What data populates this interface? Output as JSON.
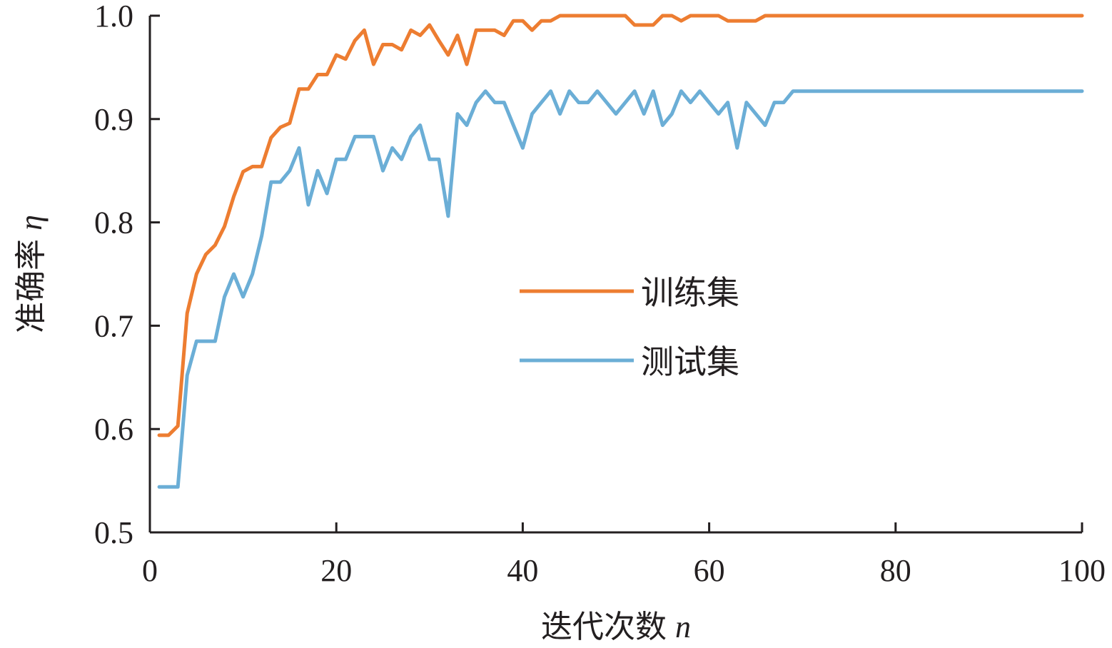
{
  "chart_data": {
    "type": "line",
    "xlabel": {
      "text": "迭代次数",
      "variable": "n"
    },
    "ylabel": {
      "text": "准确率",
      "variable": "η"
    },
    "xlim": [
      0,
      100
    ],
    "ylim": [
      0.5,
      1.0
    ],
    "xticks": [
      "0",
      "20",
      "40",
      "60",
      "80",
      "100"
    ],
    "yticks": [
      "0.5",
      "0.6",
      "0.7",
      "0.8",
      "0.9",
      "1.0"
    ],
    "grid": false,
    "legend_position": "center-right",
    "series": [
      {
        "name": "训练集",
        "color": "#ed7d31",
        "x": [
          1,
          2,
          3,
          4,
          5,
          6,
          7,
          8,
          9,
          10,
          11,
          12,
          13,
          14,
          15,
          16,
          17,
          18,
          19,
          20,
          21,
          22,
          23,
          24,
          25,
          26,
          27,
          28,
          29,
          30,
          31,
          32,
          33,
          34,
          35,
          36,
          37,
          38,
          39,
          40,
          41,
          42,
          43,
          44,
          45,
          46,
          47,
          48,
          49,
          50,
          51,
          52,
          53,
          54,
          55,
          56,
          57,
          58,
          59,
          60,
          61,
          62,
          63,
          64,
          65,
          66,
          67,
          68,
          69,
          70,
          71,
          72,
          73,
          74,
          75,
          76,
          77,
          78,
          79,
          80,
          81,
          82,
          83,
          84,
          85,
          86,
          87,
          88,
          89,
          90,
          91,
          92,
          93,
          94,
          95,
          96,
          97,
          98,
          99,
          100
        ],
        "values": [
          0.594,
          0.594,
          0.603,
          0.712,
          0.75,
          0.769,
          0.778,
          0.796,
          0.825,
          0.849,
          0.854,
          0.854,
          0.882,
          0.892,
          0.896,
          0.929,
          0.929,
          0.943,
          0.943,
          0.962,
          0.958,
          0.976,
          0.986,
          0.953,
          0.972,
          0.972,
          0.967,
          0.986,
          0.981,
          0.991,
          0.976,
          0.962,
          0.981,
          0.953,
          0.986,
          0.986,
          0.986,
          0.981,
          0.995,
          0.995,
          0.986,
          0.995,
          0.995,
          1.0,
          1.0,
          1.0,
          1.0,
          1.0,
          1.0,
          1.0,
          1.0,
          0.991,
          0.991,
          0.991,
          1.0,
          1.0,
          0.995,
          1.0,
          1.0,
          1.0,
          1.0,
          0.995,
          0.995,
          0.995,
          0.995,
          1.0,
          1.0,
          1.0,
          1.0,
          1.0,
          1.0,
          1.0,
          1.0,
          1.0,
          1.0,
          1.0,
          1.0,
          1.0,
          1.0,
          1.0,
          1.0,
          1.0,
          1.0,
          1.0,
          1.0,
          1.0,
          1.0,
          1.0,
          1.0,
          1.0,
          1.0,
          1.0,
          1.0,
          1.0,
          1.0,
          1.0,
          1.0,
          1.0,
          1.0,
          1.0
        ]
      },
      {
        "name": "测试集",
        "color": "#6baed6",
        "x": [
          1,
          2,
          3,
          4,
          5,
          6,
          7,
          8,
          9,
          10,
          11,
          12,
          13,
          14,
          15,
          16,
          17,
          18,
          19,
          20,
          21,
          22,
          23,
          24,
          25,
          26,
          27,
          28,
          29,
          30,
          31,
          32,
          33,
          34,
          35,
          36,
          37,
          38,
          39,
          40,
          41,
          42,
          43,
          44,
          45,
          46,
          47,
          48,
          49,
          50,
          51,
          52,
          53,
          54,
          55,
          56,
          57,
          58,
          59,
          60,
          61,
          62,
          63,
          64,
          65,
          66,
          67,
          68,
          69,
          70,
          71,
          72,
          73,
          74,
          75,
          76,
          77,
          78,
          79,
          80,
          81,
          82,
          83,
          84,
          85,
          86,
          87,
          88,
          89,
          90,
          91,
          92,
          93,
          94,
          95,
          96,
          97,
          98,
          99,
          100
        ],
        "values": [
          0.544,
          0.544,
          0.544,
          0.652,
          0.685,
          0.685,
          0.685,
          0.728,
          0.75,
          0.728,
          0.75,
          0.787,
          0.839,
          0.839,
          0.85,
          0.872,
          0.817,
          0.85,
          0.828,
          0.861,
          0.861,
          0.883,
          0.883,
          0.883,
          0.85,
          0.872,
          0.861,
          0.883,
          0.894,
          0.861,
          0.861,
          0.806,
          0.905,
          0.894,
          0.916,
          0.927,
          0.916,
          0.916,
          0.894,
          0.872,
          0.905,
          0.916,
          0.927,
          0.905,
          0.927,
          0.916,
          0.916,
          0.927,
          0.916,
          0.905,
          0.916,
          0.927,
          0.905,
          0.927,
          0.894,
          0.905,
          0.927,
          0.916,
          0.927,
          0.916,
          0.905,
          0.916,
          0.872,
          0.916,
          0.905,
          0.894,
          0.916,
          0.916,
          0.927,
          0.927,
          0.927,
          0.927,
          0.927,
          0.927,
          0.927,
          0.927,
          0.927,
          0.927,
          0.927,
          0.927,
          0.927,
          0.927,
          0.927,
          0.927,
          0.927,
          0.927,
          0.927,
          0.927,
          0.927,
          0.927,
          0.927,
          0.927,
          0.927,
          0.927,
          0.927,
          0.927,
          0.927,
          0.927,
          0.927,
          0.927
        ]
      }
    ]
  }
}
